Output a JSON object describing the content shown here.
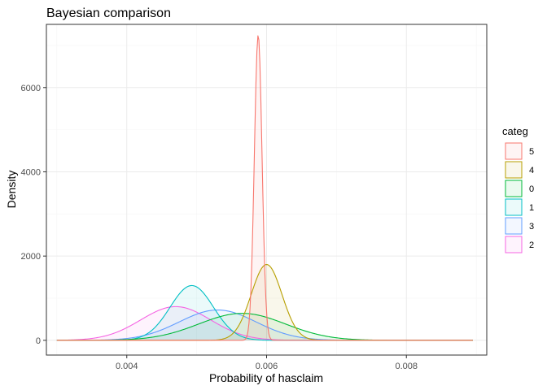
{
  "chart_data": {
    "type": "area",
    "title": "Bayesian comparison",
    "xlabel": "Probability of hasclaim",
    "ylabel": "Density",
    "xlim": [
      0.00285,
      0.00915
    ],
    "ylim": [
      -350,
      7500
    ],
    "x_ticks": [
      0.004,
      0.006,
      0.008
    ],
    "x_tick_labels": [
      "0.004",
      "0.006",
      "0.008"
    ],
    "y_ticks": [
      0,
      2000,
      4000,
      6000
    ],
    "y_tick_labels": [
      "0",
      "2000",
      "4000",
      "6000"
    ],
    "grid": true,
    "legend": {
      "title": "categ",
      "position": "right"
    },
    "series": [
      {
        "name": "5",
        "color": "#F8766D",
        "peak_x": 0.00588,
        "peak_y": 7250,
        "sd": 5.5e-05
      },
      {
        "name": "4",
        "color": "#B79F00",
        "peak_x": 0.006,
        "peak_y": 1800,
        "sd": 0.00022
      },
      {
        "name": "0",
        "color": "#00BA38",
        "peak_x": 0.00565,
        "peak_y": 640,
        "sd": 0.00062
      },
      {
        "name": "1",
        "color": "#00BFC4",
        "peak_x": 0.00493,
        "peak_y": 1300,
        "sd": 0.00031
      },
      {
        "name": "3",
        "color": "#619CFF",
        "peak_x": 0.0053,
        "peak_y": 720,
        "sd": 0.00055
      },
      {
        "name": "2",
        "color": "#F564E3",
        "peak_x": 0.0047,
        "peak_y": 800,
        "sd": 0.0005
      }
    ],
    "support": [
      0.003,
      0.00895
    ]
  }
}
